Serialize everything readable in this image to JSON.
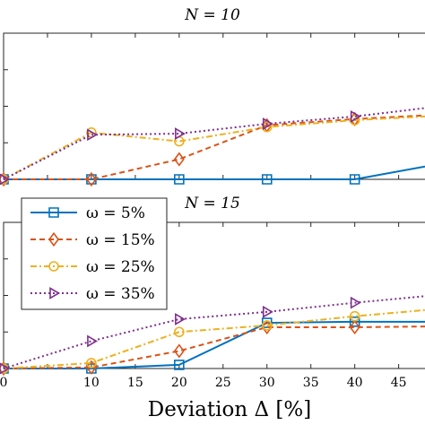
{
  "chart_data": [
    {
      "type": "line",
      "title": "N = 10",
      "xlabel": "",
      "ylabel": "",
      "xlim": [
        0,
        48
      ],
      "ylim": [
        0,
        0.4
      ],
      "x": [
        0,
        10,
        20,
        30,
        40,
        48
      ],
      "grid": false,
      "series": [
        {
          "name": "ω = 5%",
          "color": "#0072BD",
          "marker": "square",
          "dash": "solid",
          "values": [
            0,
            0,
            0,
            0,
            0,
            0.035
          ]
        },
        {
          "name": "ω = 15%",
          "color": "#D95319",
          "marker": "diamond",
          "dash": "dashed",
          "values": [
            0,
            0,
            0.055,
            0.148,
            0.165,
            0.175
          ]
        },
        {
          "name": "ω = 25%",
          "color": "#EDB120",
          "marker": "circle",
          "dash": "dashdot",
          "values": [
            0,
            0.128,
            0.104,
            0.143,
            0.162,
            0.172
          ]
        },
        {
          "name": "ω = 35%",
          "color": "#7E2F8E",
          "marker": "triangle-right",
          "dash": "dotted",
          "values": [
            0,
            0.122,
            0.125,
            0.152,
            0.172,
            0.195
          ]
        }
      ]
    },
    {
      "type": "line",
      "title": "N = 15",
      "xlabel": "Deviation Δ [%]",
      "ylabel": "",
      "xlim": [
        0,
        48
      ],
      "ylim": [
        0,
        0.4
      ],
      "x": [
        0,
        10,
        20,
        30,
        40,
        48
      ],
      "xticks": [
        "0",
        "10",
        "15",
        "20",
        "25",
        "30",
        "35",
        "40",
        "45"
      ],
      "xtick_values": [
        0,
        10,
        15,
        20,
        25,
        30,
        35,
        40,
        45
      ],
      "grid": false,
      "legend": {
        "position": "top-left",
        "entries": [
          "ω = 5%",
          "ω = 15%",
          "ω = 25%",
          "ω = 35%"
        ]
      },
      "series": [
        {
          "name": "ω = 5%",
          "color": "#0072BD",
          "marker": "square",
          "dash": "solid",
          "values": [
            0,
            0,
            0.01,
            0.125,
            0.128,
            0.128
          ]
        },
        {
          "name": "ω = 15%",
          "color": "#D95319",
          "marker": "diamond",
          "dash": "dashed",
          "values": [
            0,
            0.003,
            0.048,
            0.113,
            0.113,
            0.115
          ]
        },
        {
          "name": "ω = 25%",
          "color": "#EDB120",
          "marker": "circle",
          "dash": "dashdot",
          "values": [
            0,
            0.015,
            0.1,
            0.118,
            0.143,
            0.16
          ]
        },
        {
          "name": "ω = 35%",
          "color": "#7E2F8E",
          "marker": "triangle-right",
          "dash": "dotted",
          "values": [
            0,
            0.075,
            0.135,
            0.155,
            0.18,
            0.198
          ]
        }
      ]
    }
  ]
}
